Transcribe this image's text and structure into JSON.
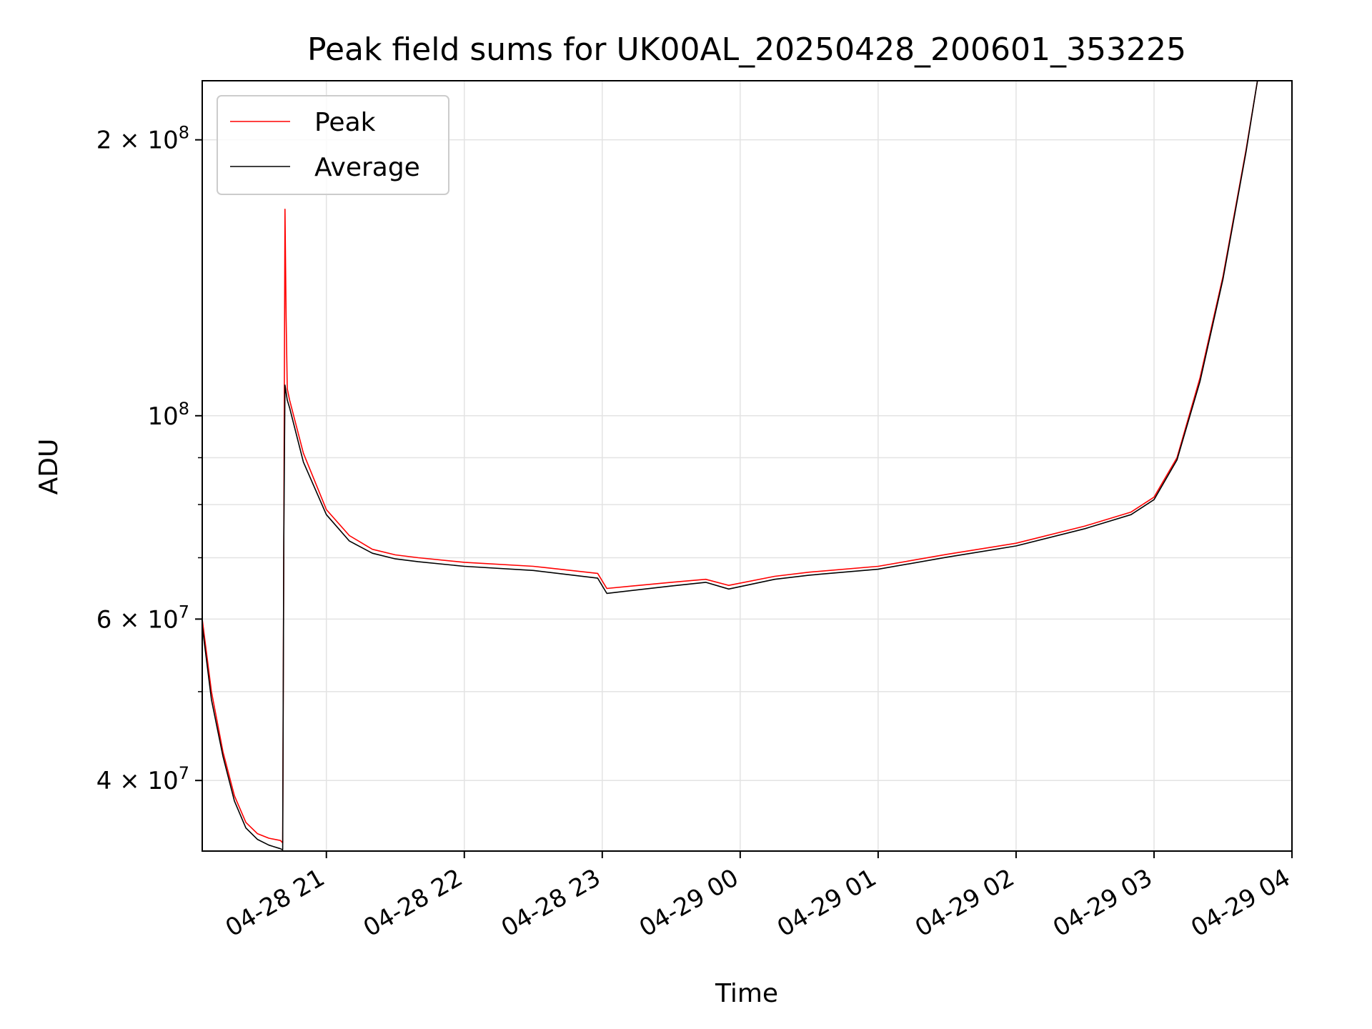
{
  "chart_data": {
    "type": "line",
    "title": "Peak field sums for UK00AL_20250428_200601_353225",
    "xlabel": "Time",
    "ylabel": "ADU",
    "yscale": "log",
    "grid": true,
    "legend_placement": "upper-left",
    "xlim": [
      "2025-04-28 20:06",
      "2025-04-29 04:00"
    ],
    "ylim": [
      33500000,
      232000000
    ],
    "x_ticks": [
      {
        "x": "2025-04-28 21:00",
        "label": "04-28 21"
      },
      {
        "x": "2025-04-28 22:00",
        "label": "04-28 22"
      },
      {
        "x": "2025-04-28 23:00",
        "label": "04-28 23"
      },
      {
        "x": "2025-04-29 00:00",
        "label": "04-29 00"
      },
      {
        "x": "2025-04-29 01:00",
        "label": "04-29 01"
      },
      {
        "x": "2025-04-29 02:00",
        "label": "04-29 02"
      },
      {
        "x": "2025-04-29 03:00",
        "label": "04-29 03"
      },
      {
        "x": "2025-04-29 04:00",
        "label": "04-29 04"
      }
    ],
    "y_major_ticks": [
      {
        "value": 40000000,
        "mantissa": "4 × 10",
        "exp": "7"
      },
      {
        "value": 60000000,
        "mantissa": "6 × 10",
        "exp": "7"
      },
      {
        "value": 100000000,
        "mantissa": "10",
        "exp": "8"
      },
      {
        "value": 200000000,
        "mantissa": "2 × 10",
        "exp": "8"
      }
    ],
    "y_minor_ticks": [
      50000000,
      70000000,
      80000000,
      90000000
    ],
    "series": [
      {
        "name": "Peak",
        "color": "#ff0000",
        "x": [
          "2025-04-28 20:06",
          "2025-04-28 20:10",
          "2025-04-28 20:15",
          "2025-04-28 20:20",
          "2025-04-28 20:25",
          "2025-04-28 20:30",
          "2025-04-28 20:35",
          "2025-04-28 20:40",
          "2025-04-28 20:41",
          "2025-04-28 20:41:30",
          "2025-04-28 20:42",
          "2025-04-28 20:42:30",
          "2025-04-28 20:43",
          "2025-04-28 20:44",
          "2025-04-28 20:50",
          "2025-04-28 21:00",
          "2025-04-28 21:10",
          "2025-04-28 21:20",
          "2025-04-28 21:30",
          "2025-04-28 21:40",
          "2025-04-28 22:00",
          "2025-04-28 22:30",
          "2025-04-28 22:58",
          "2025-04-28 23:02",
          "2025-04-28 23:30",
          "2025-04-28 23:45",
          "2025-04-28 23:55",
          "2025-04-29 00:15",
          "2025-04-29 00:30",
          "2025-04-29 01:00",
          "2025-04-29 01:30",
          "2025-04-29 02:00",
          "2025-04-29 02:30",
          "2025-04-29 02:50",
          "2025-04-29 03:00",
          "2025-04-29 03:10",
          "2025-04-29 03:20",
          "2025-04-29 03:30",
          "2025-04-29 03:40",
          "2025-04-29 03:45",
          "2025-04-29 03:50",
          "2025-04-29 04:00"
        ],
        "y": [
          60000000,
          50000000,
          43000000,
          38500000,
          36000000,
          35000000,
          34600000,
          34400000,
          34200000,
          75000000,
          168000000,
          128000000,
          107000000,
          104000000,
          91000000,
          79000000,
          74000000,
          71500000,
          70500000,
          70000000,
          69200000,
          68500000,
          67300000,
          64800000,
          65800000,
          66300000,
          65300000,
          66800000,
          67500000,
          68500000,
          70600000,
          72600000,
          75800000,
          78500000,
          81500000,
          90000000,
          110000000,
          142000000,
          195000000,
          232000000,
          232000000,
          232000000
        ]
      },
      {
        "name": "Average",
        "color": "#000000",
        "x": [
          "2025-04-28 20:06",
          "2025-04-28 20:10",
          "2025-04-28 20:15",
          "2025-04-28 20:20",
          "2025-04-28 20:25",
          "2025-04-28 20:30",
          "2025-04-28 20:35",
          "2025-04-28 20:40",
          "2025-04-28 20:41",
          "2025-04-28 20:41:30",
          "2025-04-28 20:42",
          "2025-04-28 20:43",
          "2025-04-28 20:44",
          "2025-04-28 20:50",
          "2025-04-28 21:00",
          "2025-04-28 21:10",
          "2025-04-28 21:20",
          "2025-04-28 21:30",
          "2025-04-28 21:40",
          "2025-04-28 22:00",
          "2025-04-28 22:30",
          "2025-04-28 22:58",
          "2025-04-28 23:02",
          "2025-04-28 23:30",
          "2025-04-28 23:45",
          "2025-04-28 23:55",
          "2025-04-29 00:15",
          "2025-04-29 00:30",
          "2025-04-29 01:00",
          "2025-04-29 01:30",
          "2025-04-29 02:00",
          "2025-04-29 02:30",
          "2025-04-29 02:50",
          "2025-04-29 03:00",
          "2025-04-29 03:10",
          "2025-04-29 03:20",
          "2025-04-29 03:30",
          "2025-04-29 03:40",
          "2025-04-29 03:45",
          "2025-04-29 03:50",
          "2025-04-29 04:00"
        ],
        "y": [
          59000000,
          49000000,
          42500000,
          38000000,
          35500000,
          34500000,
          34000000,
          33700000,
          33600000,
          74000000,
          108000000,
          104000000,
          102000000,
          89000000,
          78000000,
          73000000,
          70800000,
          69800000,
          69300000,
          68500000,
          67800000,
          66500000,
          64000000,
          65200000,
          65800000,
          64700000,
          66300000,
          67000000,
          68000000,
          70100000,
          72100000,
          75300000,
          78000000,
          81000000,
          89500000,
          109000000,
          141000000,
          194000000,
          232000000,
          232000000,
          232000000
        ]
      }
    ]
  }
}
